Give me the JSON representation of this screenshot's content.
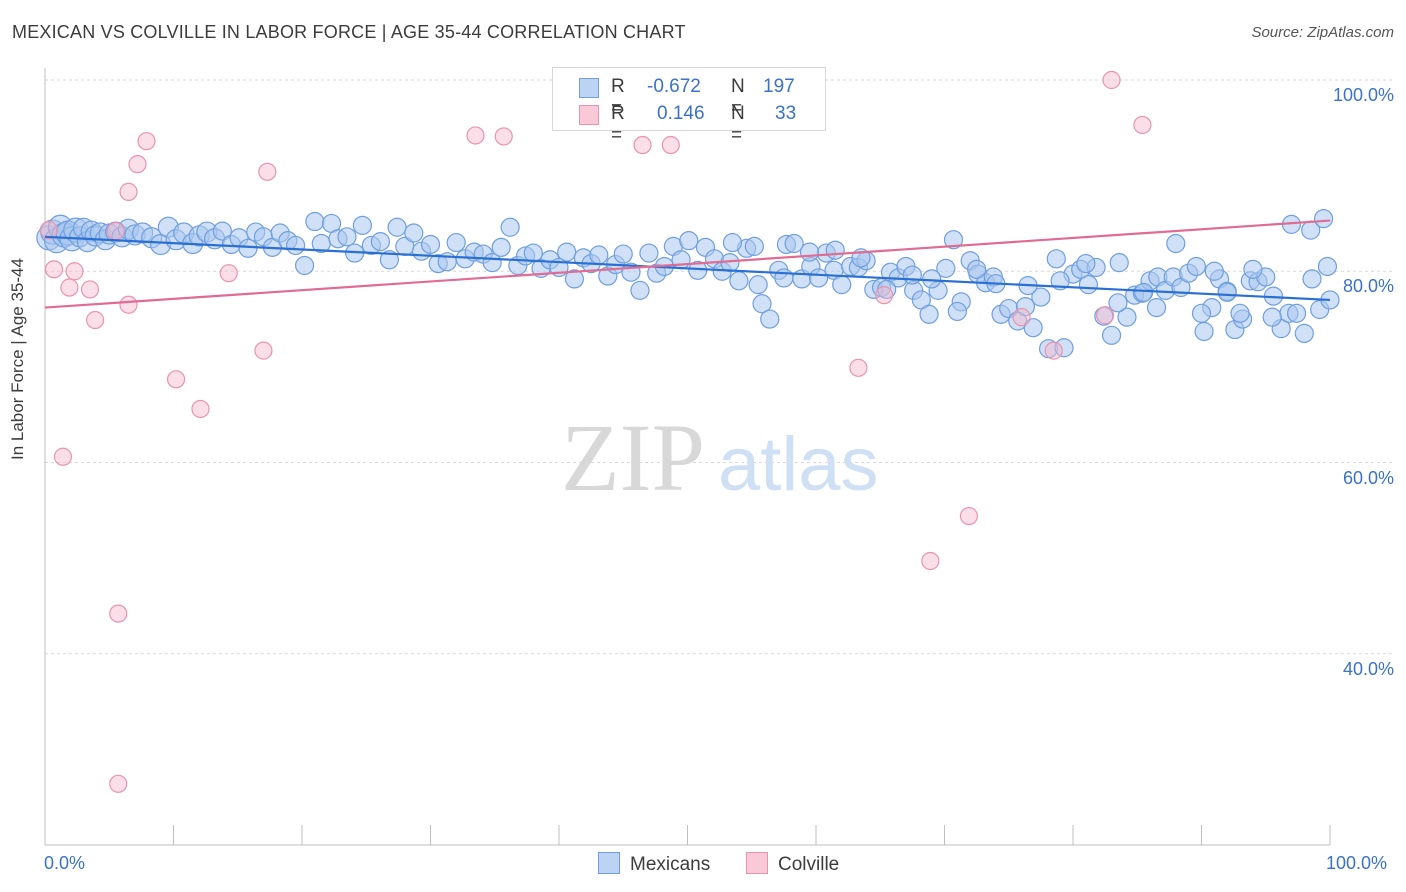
{
  "title": "MEXICAN VS COLVILLE IN LABOR FORCE | AGE 35-44 CORRELATION CHART",
  "source": "Source: ZipAtlas.com",
  "watermark": {
    "zip": "ZIP",
    "atlas": "atlas"
  },
  "colors": {
    "blue_fill": "#a9c6ef",
    "blue_stroke": "#6f9fe0",
    "blue_line": "#2a6fd4",
    "pink_fill": "#f7b9cb",
    "pink_stroke": "#eb93ae",
    "pink_line": "#e06b93",
    "label_blue": "#3a72c9",
    "grid": "#d9d9d9"
  },
  "legend": {
    "rows": [
      {
        "r_label": "R =",
        "r_value": "-0.672",
        "n_label": "N =",
        "n_value": "197"
      },
      {
        "r_label": "R =",
        "r_value": "0.146",
        "n_label": "N =",
        "n_value": "33"
      }
    ]
  },
  "bottom_legend": {
    "mexicans": "Mexicans",
    "colville": "Colville"
  },
  "chart_data": {
    "type": "scatter",
    "title": "MEXICAN VS COLVILLE IN LABOR FORCE | AGE 35-44 CORRELATION CHART",
    "xlabel": "",
    "ylabel": "In Labor Force | Age 35-44",
    "xlim": [
      0,
      100
    ],
    "ylim": [
      20,
      100
    ],
    "x_tick_labels": [
      "0.0%",
      "100.0%"
    ],
    "y_tick_labels": [
      "100.0%",
      "80.0%",
      "60.0%",
      "40.0%"
    ],
    "y_ticks": [
      100,
      80,
      60,
      40
    ],
    "grid": true,
    "series": [
      {
        "name": "Mexicans",
        "r": -0.672,
        "n": 197,
        "trend": [
          [
            0,
            83.6
          ],
          [
            100,
            77.0
          ]
        ],
        "points": [
          [
            0.3,
            83.5
          ],
          [
            0.6,
            84.1
          ],
          [
            0.9,
            83.2
          ],
          [
            1.2,
            84.6
          ],
          [
            1.5,
            83.8
          ],
          [
            1.8,
            84.0
          ],
          [
            2.1,
            83.4
          ],
          [
            2.4,
            84.3
          ],
          [
            2.7,
            83.6
          ],
          [
            3.0,
            84.5
          ],
          [
            3.3,
            83.1
          ],
          [
            3.6,
            84.2
          ],
          [
            3.9,
            83.7
          ],
          [
            4.3,
            84.0
          ],
          [
            4.7,
            83.3
          ],
          [
            5.0,
            83.9
          ],
          [
            5.5,
            84.1
          ],
          [
            6.0,
            83.6
          ],
          [
            6.5,
            84.4
          ],
          [
            7.0,
            83.8
          ],
          [
            7.6,
            84.0
          ],
          [
            8.3,
            83.5
          ],
          [
            9.0,
            82.8
          ],
          [
            9.6,
            84.6
          ],
          [
            10.2,
            83.3
          ],
          [
            10.8,
            84.0
          ],
          [
            11.5,
            82.9
          ],
          [
            12.0,
            83.7
          ],
          [
            12.6,
            84.1
          ],
          [
            13.2,
            83.4
          ],
          [
            13.8,
            84.2
          ],
          [
            14.5,
            82.8
          ],
          [
            15.1,
            83.5
          ],
          [
            15.8,
            82.4
          ],
          [
            16.4,
            84.1
          ],
          [
            17.0,
            83.6
          ],
          [
            17.7,
            82.5
          ],
          [
            18.3,
            84.0
          ],
          [
            18.9,
            83.2
          ],
          [
            19.5,
            82.7
          ],
          [
            20.2,
            80.6
          ],
          [
            21.0,
            85.2
          ],
          [
            21.5,
            82.9
          ],
          [
            22.3,
            85.0
          ],
          [
            22.8,
            83.4
          ],
          [
            23.5,
            83.6
          ],
          [
            24.1,
            81.9
          ],
          [
            24.7,
            84.8
          ],
          [
            25.4,
            82.7
          ],
          [
            26.1,
            83.1
          ],
          [
            26.8,
            81.2
          ],
          [
            27.4,
            84.6
          ],
          [
            28.0,
            82.6
          ],
          [
            28.7,
            84.0
          ],
          [
            29.3,
            82.1
          ],
          [
            30.0,
            82.8
          ],
          [
            30.6,
            80.8
          ],
          [
            31.3,
            81.0
          ],
          [
            32.0,
            83.0
          ],
          [
            32.7,
            81.3
          ],
          [
            33.4,
            82.0
          ],
          [
            34.1,
            81.8
          ],
          [
            34.8,
            80.9
          ],
          [
            35.5,
            82.5
          ],
          [
            36.2,
            84.6
          ],
          [
            36.8,
            80.6
          ],
          [
            37.4,
            81.6
          ],
          [
            38.0,
            81.9
          ],
          [
            38.6,
            80.3
          ],
          [
            39.3,
            81.2
          ],
          [
            40.0,
            80.4
          ],
          [
            40.6,
            82.0
          ],
          [
            41.2,
            79.2
          ],
          [
            41.9,
            81.4
          ],
          [
            42.5,
            80.8
          ],
          [
            43.1,
            81.7
          ],
          [
            43.8,
            79.5
          ],
          [
            44.4,
            80.7
          ],
          [
            45.0,
            81.8
          ],
          [
            45.6,
            79.9
          ],
          [
            46.3,
            78.0
          ],
          [
            47.0,
            81.9
          ],
          [
            47.6,
            79.8
          ],
          [
            48.2,
            80.5
          ],
          [
            48.9,
            82.6
          ],
          [
            49.5,
            81.2
          ],
          [
            50.1,
            83.2
          ],
          [
            50.8,
            80.1
          ],
          [
            51.4,
            82.5
          ],
          [
            52.1,
            81.3
          ],
          [
            52.7,
            80.0
          ],
          [
            53.3,
            80.9
          ],
          [
            54.0,
            79.0
          ],
          [
            54.6,
            82.4
          ],
          [
            55.2,
            82.6
          ],
          [
            55.8,
            76.6
          ],
          [
            56.4,
            75.0
          ],
          [
            57.1,
            80.1
          ],
          [
            57.7,
            82.8
          ],
          [
            58.3,
            82.9
          ],
          [
            58.9,
            79.2
          ],
          [
            59.6,
            80.5
          ],
          [
            60.2,
            79.3
          ],
          [
            60.8,
            81.9
          ],
          [
            61.4,
            80.1
          ],
          [
            62.0,
            78.6
          ],
          [
            62.7,
            80.5
          ],
          [
            63.3,
            80.4
          ],
          [
            63.9,
            81.1
          ],
          [
            64.5,
            78.1
          ],
          [
            65.1,
            78.3
          ],
          [
            65.8,
            79.9
          ],
          [
            66.4,
            79.3
          ],
          [
            67.0,
            80.5
          ],
          [
            67.6,
            78.0
          ],
          [
            68.2,
            77.0
          ],
          [
            68.8,
            75.5
          ],
          [
            69.5,
            78.0
          ],
          [
            70.1,
            80.3
          ],
          [
            70.7,
            83.3
          ],
          [
            71.3,
            76.8
          ],
          [
            72.0,
            81.1
          ],
          [
            72.6,
            79.7
          ],
          [
            73.2,
            78.8
          ],
          [
            73.8,
            79.4
          ],
          [
            74.4,
            75.5
          ],
          [
            75.0,
            76.1
          ],
          [
            75.7,
            74.8
          ],
          [
            76.3,
            76.3
          ],
          [
            76.9,
            74.1
          ],
          [
            77.5,
            77.3
          ],
          [
            78.1,
            71.9
          ],
          [
            78.7,
            81.3
          ],
          [
            79.3,
            72.0
          ],
          [
            80.0,
            79.7
          ],
          [
            80.6,
            80.2
          ],
          [
            81.2,
            78.6
          ],
          [
            81.8,
            80.4
          ],
          [
            82.4,
            75.3
          ],
          [
            83.0,
            73.3
          ],
          [
            83.6,
            80.9
          ],
          [
            84.2,
            75.2
          ],
          [
            84.8,
            77.5
          ],
          [
            85.4,
            77.7
          ],
          [
            86.0,
            79.0
          ],
          [
            86.6,
            79.4
          ],
          [
            87.2,
            78.0
          ],
          [
            87.8,
            79.4
          ],
          [
            88.4,
            78.3
          ],
          [
            89.0,
            79.8
          ],
          [
            89.6,
            80.5
          ],
          [
            90.2,
            73.7
          ],
          [
            90.8,
            76.2
          ],
          [
            91.4,
            79.2
          ],
          [
            92.0,
            77.9
          ],
          [
            92.6,
            73.9
          ],
          [
            93.2,
            75.0
          ],
          [
            93.8,
            79.0
          ],
          [
            94.4,
            78.9
          ],
          [
            95.0,
            79.4
          ],
          [
            95.6,
            77.4
          ],
          [
            96.2,
            74.0
          ],
          [
            96.8,
            75.6
          ],
          [
            97.4,
            75.6
          ],
          [
            98.0,
            73.5
          ],
          [
            98.6,
            79.2
          ],
          [
            99.2,
            76.0
          ],
          [
            99.8,
            80.5
          ],
          [
            100.0,
            77.0
          ],
          [
            85.5,
            77.8
          ],
          [
            88.0,
            82.9
          ],
          [
            90.0,
            75.6
          ],
          [
            92.0,
            77.8
          ],
          [
            94.0,
            80.2
          ],
          [
            97.0,
            84.9
          ],
          [
            98.5,
            84.3
          ],
          [
            99.5,
            85.5
          ],
          [
            95.5,
            75.2
          ],
          [
            93.0,
            75.6
          ],
          [
            91.0,
            80.0
          ],
          [
            86.5,
            76.2
          ],
          [
            83.5,
            76.7
          ],
          [
            81.0,
            80.8
          ],
          [
            79.0,
            79.0
          ],
          [
            76.5,
            78.5
          ],
          [
            74.0,
            78.7
          ],
          [
            72.5,
            80.2
          ],
          [
            71.0,
            75.8
          ],
          [
            69.0,
            79.2
          ],
          [
            67.5,
            79.6
          ],
          [
            65.5,
            78.1
          ],
          [
            63.5,
            81.4
          ],
          [
            61.5,
            82.2
          ],
          [
            59.5,
            82.0
          ],
          [
            57.5,
            79.3
          ],
          [
            55.5,
            78.6
          ],
          [
            53.5,
            83.0
          ]
        ]
      },
      {
        "name": "Colville",
        "r": 0.146,
        "n": 33,
        "trend": [
          [
            0,
            76.2
          ],
          [
            100,
            85.3
          ]
        ],
        "points": [
          [
            0.3,
            84.3
          ],
          [
            0.7,
            80.2
          ],
          [
            1.4,
            60.6
          ],
          [
            1.9,
            78.3
          ],
          [
            2.3,
            80.0
          ],
          [
            3.5,
            78.1
          ],
          [
            3.9,
            74.9
          ],
          [
            5.5,
            84.2
          ],
          [
            5.7,
            44.2
          ],
          [
            5.7,
            26.4
          ],
          [
            6.5,
            88.3
          ],
          [
            6.5,
            76.5
          ],
          [
            7.2,
            91.2
          ],
          [
            7.9,
            93.6
          ],
          [
            10.2,
            68.7
          ],
          [
            12.1,
            65.6
          ],
          [
            14.3,
            79.8
          ],
          [
            17.0,
            71.7
          ],
          [
            17.3,
            90.4
          ],
          [
            33.5,
            94.2
          ],
          [
            35.7,
            94.1
          ],
          [
            40.8,
            100.0
          ],
          [
            46.5,
            93.2
          ],
          [
            48.7,
            93.2
          ],
          [
            63.3,
            69.9
          ],
          [
            65.3,
            77.5
          ],
          [
            68.9,
            49.7
          ],
          [
            71.9,
            54.4
          ],
          [
            76.0,
            75.2
          ],
          [
            78.5,
            71.7
          ],
          [
            82.5,
            75.4
          ],
          [
            83.0,
            100.0
          ],
          [
            85.4,
            95.3
          ]
        ]
      }
    ]
  }
}
